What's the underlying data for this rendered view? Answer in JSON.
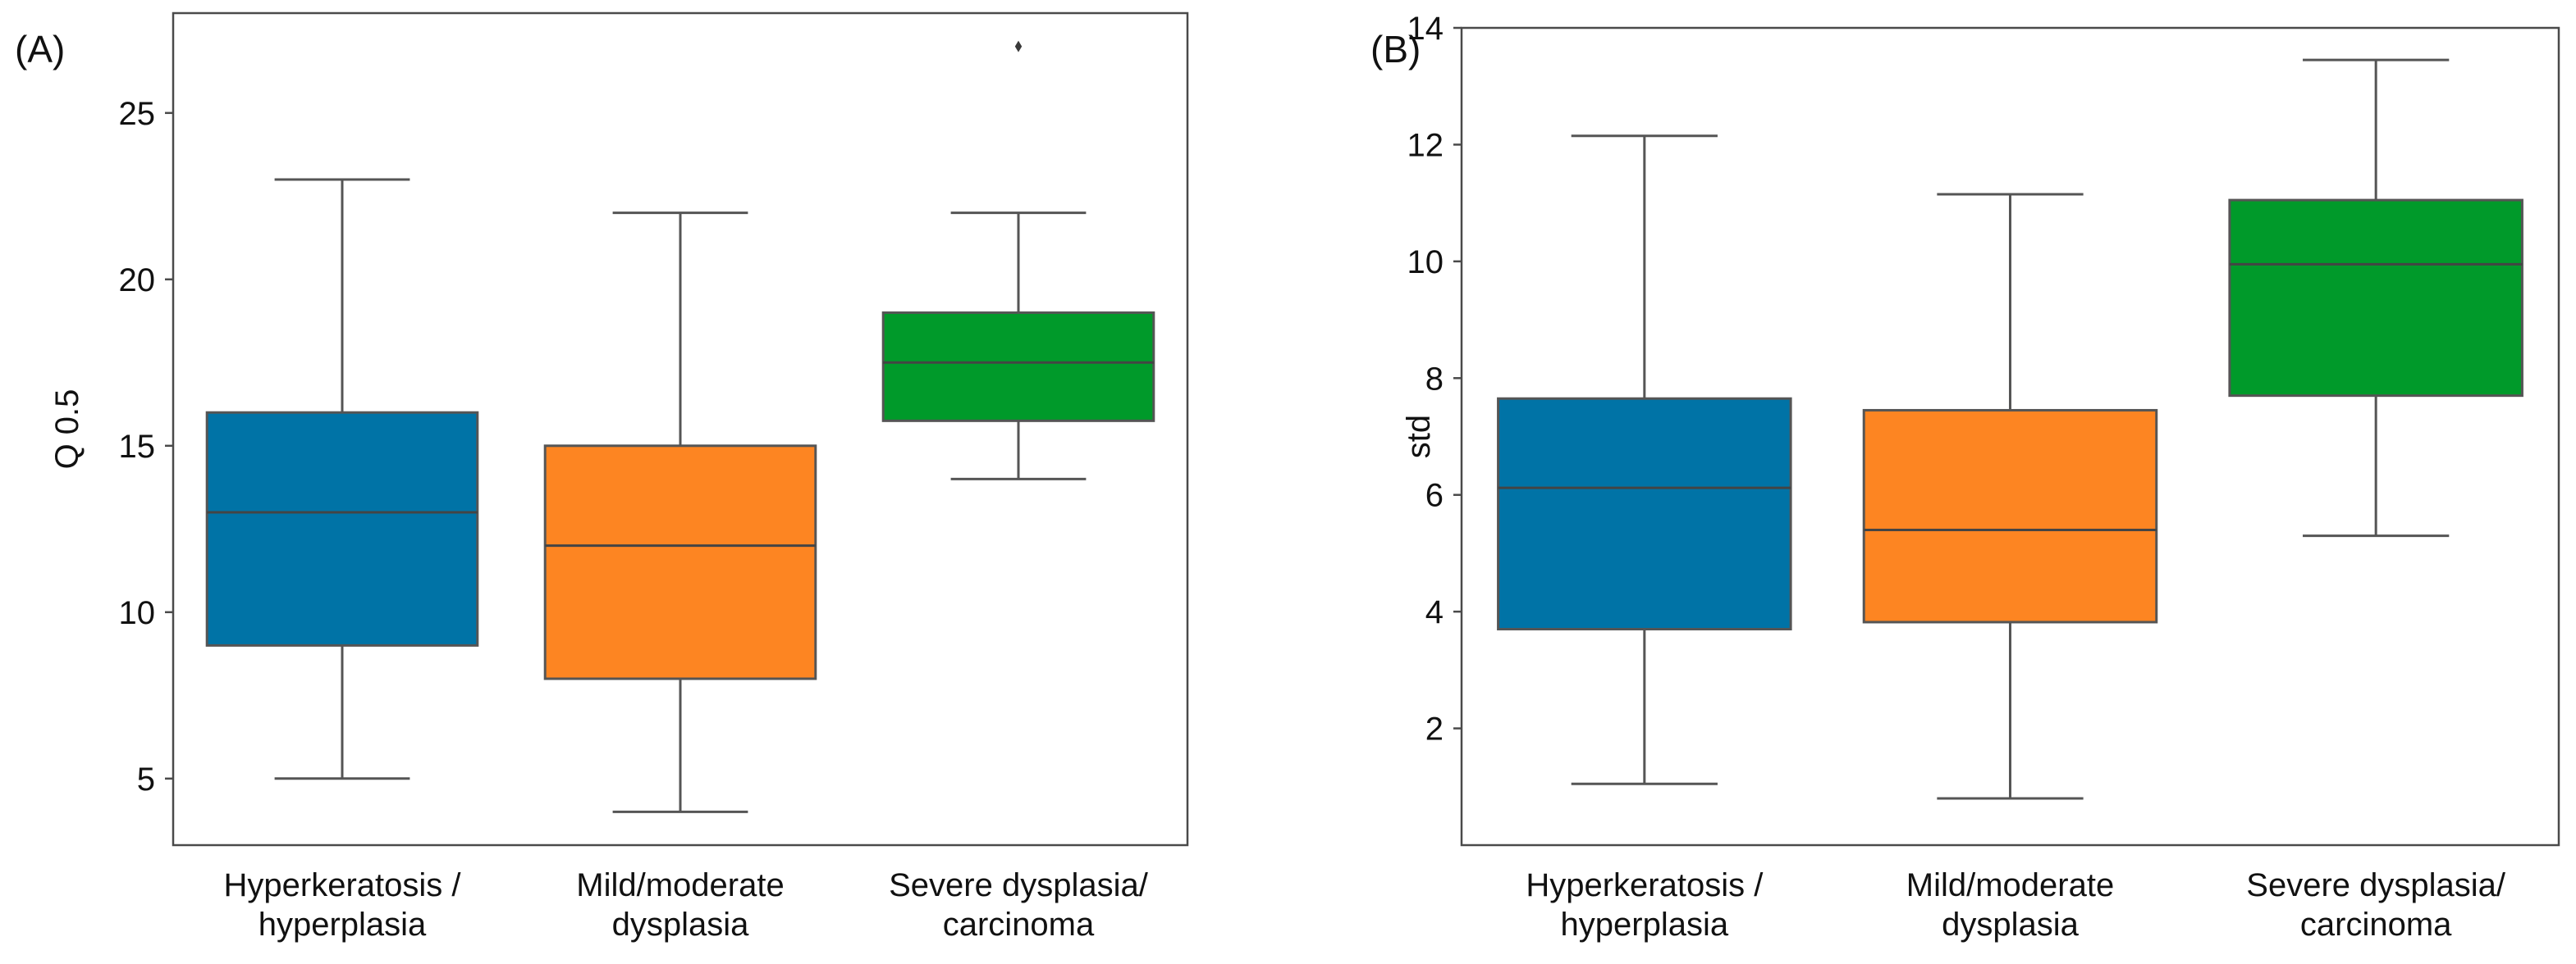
{
  "chart_data": [
    {
      "type": "box",
      "panel_label": "(A)",
      "xlabel": "",
      "ylabel": "Q 0.5",
      "ylim": [
        3,
        28
      ],
      "yticks": [
        5,
        10,
        15,
        20,
        25
      ],
      "categories": [
        {
          "line1": "Hyperkeratosis /",
          "line2": "hyperplasia"
        },
        {
          "line1": "Mild/moderate",
          "line2": "dysplasia"
        },
        {
          "line1": "Severe dysplasia/",
          "line2": "carcinoma"
        }
      ],
      "boxes": [
        {
          "whislo": 5,
          "q1": 9,
          "med": 13,
          "q3": 16,
          "whishi": 23,
          "fliers": [],
          "color": "#0073a6"
        },
        {
          "whislo": 4,
          "q1": 8,
          "med": 12,
          "q3": 15,
          "whishi": 22,
          "fliers": [],
          "color": "#fd8522"
        },
        {
          "whislo": 14,
          "q1": 15.75,
          "med": 17.5,
          "q3": 19,
          "whishi": 22,
          "fliers": [
            27
          ],
          "color": "#009a2a"
        }
      ]
    },
    {
      "type": "box",
      "panel_label": "(B)",
      "xlabel": "",
      "ylabel": "std",
      "ylim": [
        0,
        14
      ],
      "yticks": [
        2,
        4,
        6,
        8,
        10,
        12,
        14
      ],
      "categories": [
        {
          "line1": "Hyperkeratosis /",
          "line2": "hyperplasia"
        },
        {
          "line1": "Mild/moderate",
          "line2": "dysplasia"
        },
        {
          "line1": "Severe dysplasia/",
          "line2": "carcinoma"
        }
      ],
      "boxes": [
        {
          "whislo": 1.05,
          "q1": 3.7,
          "med": 6.12,
          "q3": 7.65,
          "whishi": 12.15,
          "fliers": [],
          "color": "#0073a6"
        },
        {
          "whislo": 0.8,
          "q1": 3.82,
          "med": 5.4,
          "q3": 7.45,
          "whishi": 11.15,
          "fliers": [],
          "color": "#fd8522"
        },
        {
          "whislo": 5.3,
          "q1": 7.7,
          "med": 9.95,
          "q3": 11.05,
          "whishi": 13.45,
          "fliers": [],
          "color": "#009a2a"
        }
      ]
    }
  ]
}
